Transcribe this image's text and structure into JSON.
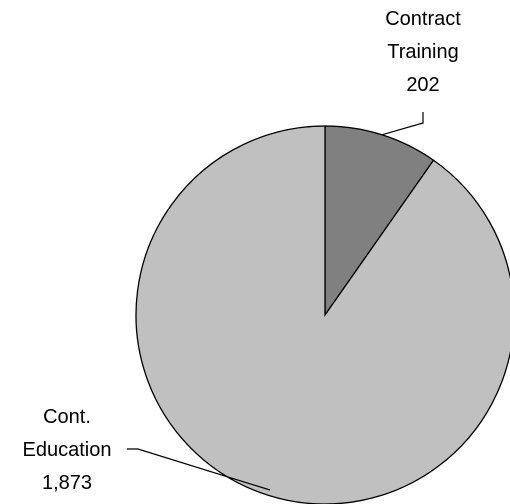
{
  "chart_data": {
    "type": "pie",
    "slices": [
      {
        "label_lines": [
          "Contract",
          "Training"
        ],
        "value": 202,
        "value_label": "202",
        "color": "#808080"
      },
      {
        "label_lines": [
          "Cont.",
          "Education"
        ],
        "value": 1873,
        "value_label": "1,873",
        "color": "#c0c0c0"
      }
    ],
    "start_angle": "12 o'clock",
    "direction": "clockwise",
    "border_color": "#000000",
    "legend": "none"
  }
}
